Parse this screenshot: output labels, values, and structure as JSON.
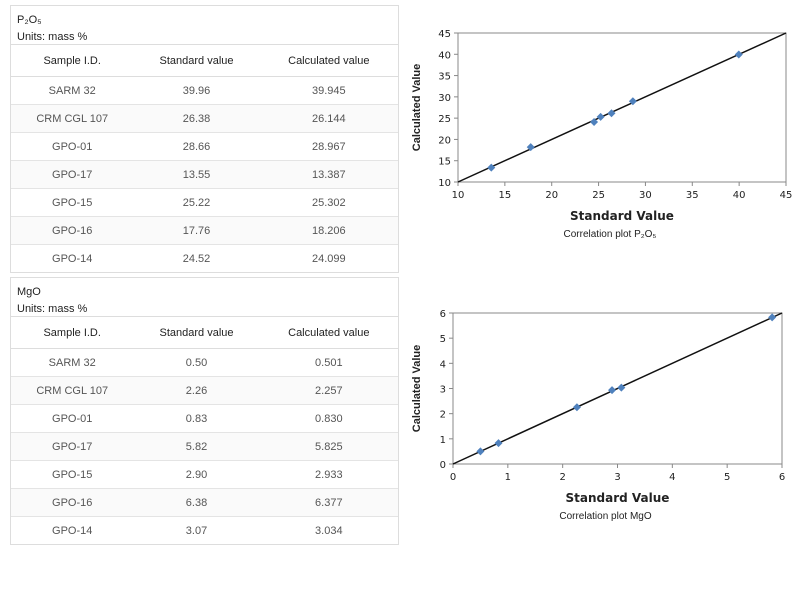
{
  "tables": [
    {
      "title": "P₂O₅",
      "units": "Units: mass %",
      "headers": [
        "Sample I.D.",
        "Standard value",
        "Calculated value"
      ],
      "rows": [
        [
          "SARM 32",
          "39.96",
          "39.945"
        ],
        [
          "CRM CGL 107",
          "26.38",
          "26.144"
        ],
        [
          "GPO-01",
          "28.66",
          "28.967"
        ],
        [
          "GPO-17",
          "13.55",
          "13.387"
        ],
        [
          "GPO-15",
          "25.22",
          "25.302"
        ],
        [
          "GPO-16",
          "17.76",
          "18.206"
        ],
        [
          "GPO-14",
          "24.52",
          "24.099"
        ]
      ]
    },
    {
      "title": "MgO",
      "units": "Units: mass %",
      "headers": [
        "Sample I.D.",
        "Standard value",
        "Calculated value"
      ],
      "rows": [
        [
          "SARM 32",
          "0.50",
          "0.501"
        ],
        [
          "CRM CGL 107",
          "2.26",
          "2.257"
        ],
        [
          "GPO-01",
          "0.83",
          "0.830"
        ],
        [
          "GPO-17",
          "5.82",
          "5.825"
        ],
        [
          "GPO-15",
          "2.90",
          "2.933"
        ],
        [
          "GPO-16",
          "6.38",
          "6.377"
        ],
        [
          "GPO-14",
          "3.07",
          "3.034"
        ]
      ]
    }
  ],
  "chart_data": [
    {
      "type": "scatter",
      "title": "Correlation plot P₂O₅",
      "xlabel": "Standard Value",
      "ylabel": "Calculated Value",
      "xlim": [
        10,
        45
      ],
      "ylim": [
        10,
        45
      ],
      "xticks": [
        10,
        15,
        20,
        25,
        30,
        35,
        40,
        45
      ],
      "yticks": [
        10,
        15,
        20,
        25,
        30,
        35,
        40,
        45
      ],
      "points": [
        [
          39.96,
          39.945
        ],
        [
          26.38,
          26.144
        ],
        [
          28.66,
          28.967
        ],
        [
          13.55,
          13.387
        ],
        [
          25.22,
          25.302
        ],
        [
          17.76,
          18.206
        ],
        [
          24.52,
          24.099
        ]
      ],
      "line": [
        [
          10,
          10
        ],
        [
          45,
          45
        ]
      ],
      "marker_color": "#4f81bd"
    },
    {
      "type": "scatter",
      "title": "Correlation plot MgO",
      "xlabel": "Standard Value",
      "ylabel": "Calculated Value",
      "xlim": [
        0,
        6
      ],
      "ylim": [
        0,
        6
      ],
      "xticks": [
        0,
        1,
        2,
        3,
        4,
        5,
        6
      ],
      "yticks": [
        0,
        1,
        2,
        3,
        4,
        5,
        6
      ],
      "points": [
        [
          0.5,
          0.501
        ],
        [
          2.26,
          2.257
        ],
        [
          0.83,
          0.83
        ],
        [
          5.82,
          5.825
        ],
        [
          2.9,
          2.933
        ],
        [
          3.07,
          3.034
        ]
      ],
      "line": [
        [
          0,
          0
        ],
        [
          6,
          6
        ]
      ],
      "marker_color": "#4f81bd"
    }
  ]
}
